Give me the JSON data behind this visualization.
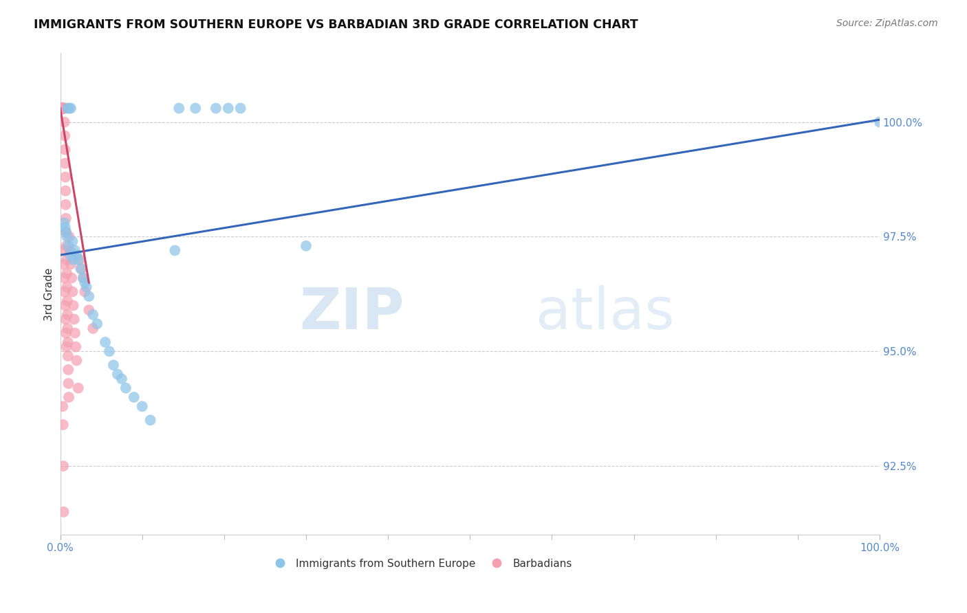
{
  "title": "IMMIGRANTS FROM SOUTHERN EUROPE VS BARBADIAN 3RD GRADE CORRELATION CHART",
  "source": "Source: ZipAtlas.com",
  "ylabel": "3rd Grade",
  "ylabel_right_vals": [
    100.0,
    97.5,
    95.0,
    92.5
  ],
  "xlim": [
    0.0,
    100.0
  ],
  "ylim": [
    91.0,
    101.5
  ],
  "legend_label_blue": "Immigrants from Southern Europe",
  "legend_label_pink": "Barbadians",
  "blue_color": "#8EC4E8",
  "pink_color": "#F4A0B0",
  "trendline_blue_color": "#3366BB",
  "trendline_pink_color": "#CC4466",
  "watermark_zip": "ZIP",
  "watermark_atlas": "atlas",
  "blue_points_x": [
    0.5,
    0.7,
    0.9,
    1.1,
    1.3,
    1.5,
    1.8,
    2.2,
    2.5,
    3.0,
    3.5,
    4.0,
    5.5,
    7.0,
    8.0,
    9.0,
    11.0,
    2.0,
    3.2,
    4.5,
    6.0,
    7.5,
    10.0,
    14.5,
    16.5,
    19.0,
    20.5,
    22.0,
    30.0,
    100.0,
    0.6,
    0.8,
    1.0,
    1.2,
    1.6,
    2.8,
    6.5,
    14.0
  ],
  "blue_points_y": [
    97.8,
    97.6,
    100.3,
    100.3,
    100.3,
    97.4,
    97.2,
    97.0,
    96.8,
    96.5,
    96.2,
    95.8,
    95.2,
    94.5,
    94.2,
    94.0,
    93.5,
    97.1,
    96.4,
    95.6,
    95.0,
    94.4,
    93.8,
    100.3,
    100.3,
    100.3,
    100.3,
    100.3,
    97.3,
    100.0,
    97.7,
    97.5,
    97.3,
    97.1,
    97.0,
    96.6,
    94.7,
    97.2
  ],
  "pink_points_x": [
    0.05,
    0.1,
    0.15,
    0.18,
    0.2,
    0.22,
    0.25,
    0.28,
    0.3,
    0.32,
    0.35,
    0.38,
    0.4,
    0.42,
    0.45,
    0.48,
    0.5,
    0.52,
    0.55,
    0.58,
    0.6,
    0.63,
    0.65,
    0.68,
    0.7,
    0.72,
    0.75,
    0.78,
    0.8,
    0.82,
    0.85,
    0.88,
    0.9,
    0.93,
    0.95,
    0.98,
    1.0,
    1.05,
    1.1,
    1.2,
    1.3,
    1.4,
    1.5,
    1.6,
    1.7,
    1.8,
    1.9,
    2.0,
    2.2,
    0.3,
    0.35,
    0.4,
    0.45,
    0.5,
    0.55,
    0.6,
    0.65,
    0.7,
    0.75,
    2.4,
    2.6,
    2.8,
    3.0,
    3.5,
    4.0,
    0.38,
    0.42
  ],
  "pink_points_y": [
    100.3,
    100.3,
    100.3,
    100.3,
    100.3,
    100.3,
    100.3,
    100.3,
    100.3,
    100.3,
    100.3,
    100.3,
    100.3,
    100.3,
    100.3,
    100.3,
    100.3,
    100.0,
    99.7,
    99.4,
    99.1,
    98.8,
    98.5,
    98.2,
    97.9,
    97.6,
    97.3,
    97.0,
    96.7,
    96.4,
    96.1,
    95.8,
    95.5,
    95.2,
    94.9,
    94.6,
    94.3,
    94.0,
    97.5,
    97.2,
    96.9,
    96.6,
    96.3,
    96.0,
    95.7,
    95.4,
    95.1,
    94.8,
    94.2,
    93.8,
    93.4,
    97.2,
    96.9,
    96.6,
    96.3,
    96.0,
    95.7,
    95.4,
    95.1,
    97.0,
    96.8,
    96.6,
    96.3,
    95.9,
    95.5,
    92.5,
    91.5
  ],
  "blue_trendline_x": [
    0.0,
    100.0
  ],
  "blue_trendline_y": [
    97.1,
    100.05
  ],
  "pink_trendline_x": [
    0.0,
    3.5
  ],
  "pink_trendline_y": [
    100.3,
    96.5
  ]
}
